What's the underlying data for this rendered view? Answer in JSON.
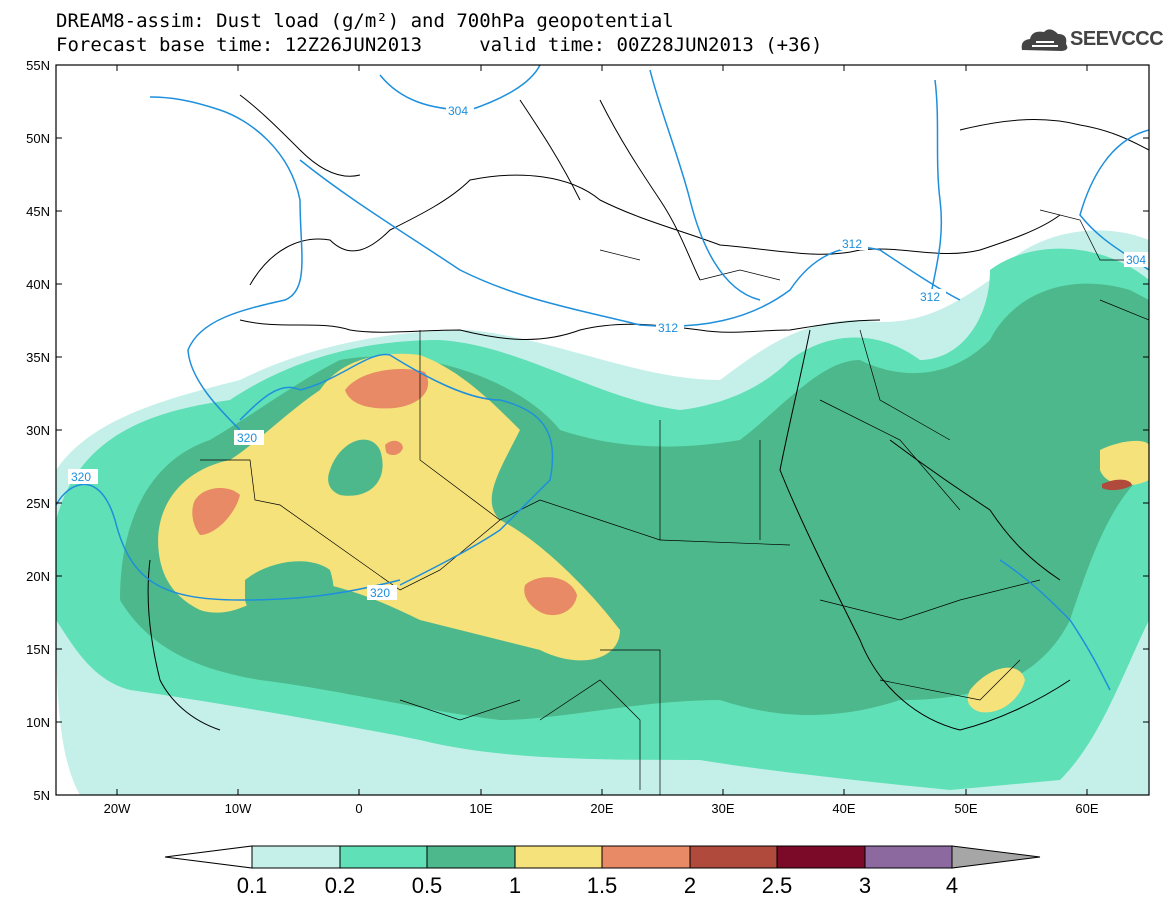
{
  "header": {
    "title_line1": "DREAM8-assim: Dust load (g/m²) and 700hPa geopotential",
    "title_line2": "Forecast base time: 12Z26JUN2013     valid time: 00Z28JUN2013 (+36)",
    "logo_text": "SEEVCCC"
  },
  "axes": {
    "lat_labels": [
      "55N",
      "50N",
      "45N",
      "40N",
      "35N",
      "30N",
      "25N",
      "20N",
      "15N",
      "10N",
      "5N"
    ],
    "lon_labels": [
      "20W",
      "10W",
      "0",
      "10E",
      "20E",
      "30E",
      "40E",
      "50E",
      "60E"
    ]
  },
  "contours": {
    "color": "#1e8fdc",
    "labels": [
      "304",
      "312",
      "312",
      "312",
      "320",
      "320",
      "320",
      "304"
    ]
  },
  "colorbar": {
    "levels": [
      "0.1",
      "0.2",
      "0.5",
      "1",
      "1.5",
      "2",
      "2.5",
      "3",
      "4"
    ],
    "colors": [
      "#c5f0ea",
      "#5fe0b6",
      "#4db88c",
      "#f5e27a",
      "#e88a66",
      "#b04a3c",
      "#7a0a28",
      "#8c6aa0",
      "#a6a6a6"
    ]
  }
}
